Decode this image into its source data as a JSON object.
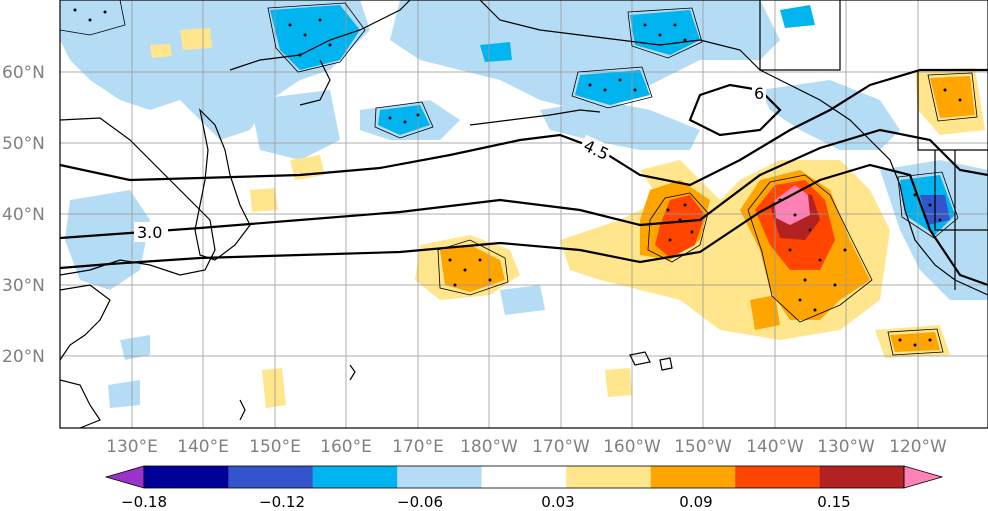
{
  "map": {
    "lat_ticks": [
      "60°N",
      "50°N",
      "40°N",
      "30°N",
      "20°N"
    ],
    "lon_ticks": [
      "130°E",
      "140°E",
      "150°E",
      "160°E",
      "170°E",
      "180°W",
      "170°W",
      "160°W",
      "150°W",
      "140°W",
      "130°W",
      "120°W"
    ],
    "contour_labels": [
      "3.0",
      "4.5",
      "6"
    ]
  },
  "colorbar": {
    "tick_labels": [
      "−0.18",
      "−0.12",
      "−0.06",
      "0.03",
      "0.09",
      "0.15"
    ],
    "colors": [
      "#9933cc",
      "#000099",
      "#3355cc",
      "#00b4f0",
      "#b4dcf5",
      "#ffffff",
      "#ffe68c",
      "#ffa500",
      "#ff4500",
      "#b22222",
      "#ff82b4"
    ]
  },
  "colors": {
    "negative_light": "#b4dcf5",
    "negative_mid": "#00b4f0",
    "positive_light": "#ffe68c",
    "positive_mid": "#ffa500",
    "positive_strong": "#ff4500",
    "positive_dark": "#b22222",
    "positive_max": "#ff82b4",
    "coast": "#000000",
    "grid": "#999999"
  }
}
